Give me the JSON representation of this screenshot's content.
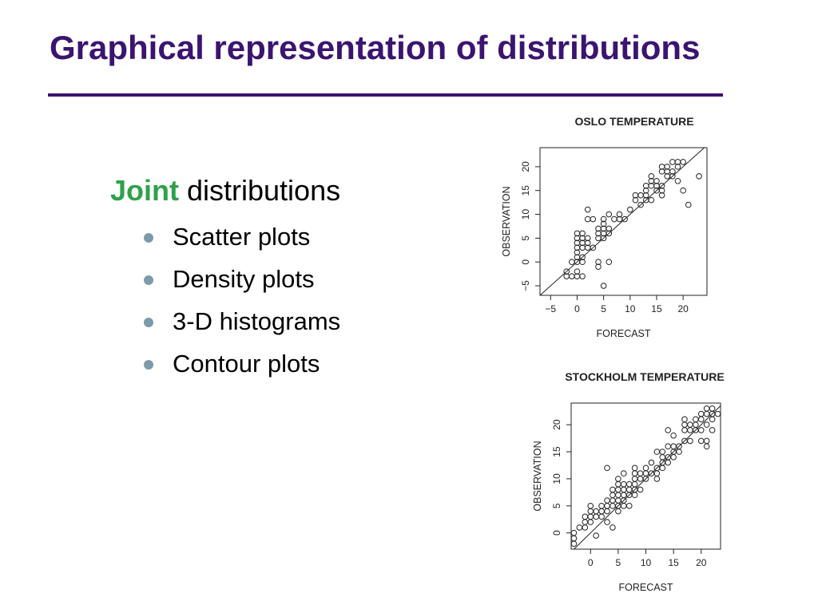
{
  "slide": {
    "title": "Graphical representation of distributions",
    "heading_accent": "Joint",
    "heading_rest": " distributions",
    "bullets": [
      "Scatter plots",
      "Density plots",
      "3-D histograms",
      "Contour plots"
    ]
  },
  "colors": {
    "title": "#3b1470",
    "accent": "#2fa14a",
    "bullet": "#7c9aa8"
  },
  "chart_data": [
    {
      "type": "scatter",
      "title": "OSLO TEMPERATURE",
      "xlabel": "FORECAST",
      "ylabel": "OBSERVATION",
      "xlim": [
        -7,
        24.5
      ],
      "ylim": [
        -7,
        24
      ],
      "xticks": [
        -5,
        0,
        5,
        10,
        15,
        20
      ],
      "yticks": [
        -5,
        0,
        5,
        10,
        15,
        20
      ],
      "diagonal": true,
      "points": [
        [
          -2,
          -3
        ],
        [
          -2,
          -2
        ],
        [
          -1,
          -3
        ],
        [
          0,
          -2
        ],
        [
          0,
          -3
        ],
        [
          1,
          -3
        ],
        [
          -1,
          0
        ],
        [
          0,
          1
        ],
        [
          0,
          2
        ],
        [
          0,
          0
        ],
        [
          1,
          0
        ],
        [
          1,
          1
        ],
        [
          0,
          3
        ],
        [
          0,
          4
        ],
        [
          1,
          3
        ],
        [
          1,
          4
        ],
        [
          1,
          5
        ],
        [
          0,
          5
        ],
        [
          0,
          6
        ],
        [
          1,
          6
        ],
        [
          2,
          4
        ],
        [
          2,
          5
        ],
        [
          2,
          3
        ],
        [
          3,
          3
        ],
        [
          4,
          5
        ],
        [
          4,
          6
        ],
        [
          4,
          7
        ],
        [
          5,
          5
        ],
        [
          5,
          6
        ],
        [
          5,
          7
        ],
        [
          5,
          8
        ],
        [
          5,
          9
        ],
        [
          6,
          6
        ],
        [
          6,
          7
        ],
        [
          4,
          0
        ],
        [
          4,
          -1
        ],
        [
          6,
          0
        ],
        [
          3,
          9
        ],
        [
          2,
          11
        ],
        [
          2,
          9
        ],
        [
          6,
          10
        ],
        [
          7,
          9
        ],
        [
          5,
          -5
        ],
        [
          8,
          9
        ],
        [
          8,
          10
        ],
        [
          9,
          9
        ],
        [
          10,
          11
        ],
        [
          11,
          13
        ],
        [
          11,
          14
        ],
        [
          12,
          14
        ],
        [
          12,
          12
        ],
        [
          13,
          13
        ],
        [
          13,
          14
        ],
        [
          13,
          15
        ],
        [
          13,
          16
        ],
        [
          14,
          16
        ],
        [
          14,
          17
        ],
        [
          14,
          18
        ],
        [
          15,
          15
        ],
        [
          15,
          16
        ],
        [
          15,
          17
        ],
        [
          16,
          16
        ],
        [
          16,
          19
        ],
        [
          16,
          20
        ],
        [
          17,
          18
        ],
        [
          17,
          19
        ],
        [
          17,
          20
        ],
        [
          18,
          18
        ],
        [
          18,
          19
        ],
        [
          18,
          21
        ],
        [
          19,
          20
        ],
        [
          19,
          17
        ],
        [
          19,
          21
        ],
        [
          20,
          21
        ],
        [
          16,
          15
        ],
        [
          16,
          14
        ],
        [
          14,
          13
        ],
        [
          20,
          15
        ],
        [
          21,
          12
        ],
        [
          23,
          18
        ]
      ]
    },
    {
      "type": "scatter",
      "title": "STOCKHOLM TEMPERATURE",
      "xlabel": "FORECAST",
      "ylabel": "OBSERVATION",
      "xlim": [
        -3.5,
        23.5
      ],
      "ylim": [
        -3,
        24
      ],
      "xticks": [
        0,
        5,
        10,
        15,
        20
      ],
      "yticks": [
        0,
        5,
        10,
        15,
        20
      ],
      "diagonal": true,
      "points": [
        [
          -3,
          -1
        ],
        [
          -3,
          -2
        ],
        [
          -3,
          0
        ],
        [
          -2,
          1
        ],
        [
          -1,
          1
        ],
        [
          -1,
          2
        ],
        [
          -1,
          3
        ],
        [
          0,
          2
        ],
        [
          0,
          3
        ],
        [
          0,
          4
        ],
        [
          0,
          5
        ],
        [
          1,
          3
        ],
        [
          1,
          -0.5
        ],
        [
          1,
          4
        ],
        [
          2,
          3
        ],
        [
          2,
          4
        ],
        [
          2,
          5
        ],
        [
          3,
          4
        ],
        [
          3,
          5
        ],
        [
          3,
          6
        ],
        [
          3,
          2
        ],
        [
          3,
          12
        ],
        [
          4,
          1
        ],
        [
          4,
          5
        ],
        [
          4,
          6
        ],
        [
          4,
          7
        ],
        [
          4,
          8
        ],
        [
          5,
          4
        ],
        [
          5,
          5
        ],
        [
          5,
          6
        ],
        [
          5,
          7
        ],
        [
          5,
          8
        ],
        [
          5,
          9
        ],
        [
          5,
          10
        ],
        [
          6,
          5
        ],
        [
          6,
          6
        ],
        [
          6,
          7
        ],
        [
          6,
          8
        ],
        [
          6,
          9
        ],
        [
          6,
          11
        ],
        [
          7,
          5
        ],
        [
          7,
          7
        ],
        [
          7,
          8
        ],
        [
          7,
          9
        ],
        [
          8,
          7
        ],
        [
          8,
          8
        ],
        [
          8,
          9
        ],
        [
          8,
          10
        ],
        [
          8,
          11
        ],
        [
          8,
          12
        ],
        [
          9,
          8
        ],
        [
          9,
          10
        ],
        [
          9,
          11
        ],
        [
          10,
          10
        ],
        [
          10,
          11
        ],
        [
          10,
          12
        ],
        [
          11,
          11
        ],
        [
          11,
          13
        ],
        [
          12,
          10
        ],
        [
          12,
          11
        ],
        [
          12,
          12
        ],
        [
          12,
          15
        ],
        [
          13,
          12
        ],
        [
          13,
          13
        ],
        [
          13,
          14
        ],
        [
          13,
          15
        ],
        [
          14,
          13
        ],
        [
          14,
          14
        ],
        [
          14,
          16
        ],
        [
          14,
          19
        ],
        [
          15,
          14
        ],
        [
          15,
          15
        ],
        [
          15,
          16
        ],
        [
          15,
          18
        ],
        [
          16,
          15
        ],
        [
          16,
          16
        ],
        [
          17,
          17
        ],
        [
          17,
          19
        ],
        [
          17,
          20
        ],
        [
          17,
          21
        ],
        [
          18,
          17
        ],
        [
          18,
          19
        ],
        [
          18,
          20
        ],
        [
          19,
          19
        ],
        [
          19,
          20
        ],
        [
          19,
          21
        ],
        [
          20,
          17
        ],
        [
          20,
          19
        ],
        [
          20,
          21
        ],
        [
          20,
          22
        ],
        [
          21,
          16
        ],
        [
          21,
          17
        ],
        [
          21,
          20
        ],
        [
          21,
          22
        ],
        [
          22,
          19
        ],
        [
          22,
          21
        ],
        [
          22,
          22
        ],
        [
          23,
          22
        ],
        [
          22,
          23
        ],
        [
          21,
          23
        ]
      ]
    }
  ]
}
